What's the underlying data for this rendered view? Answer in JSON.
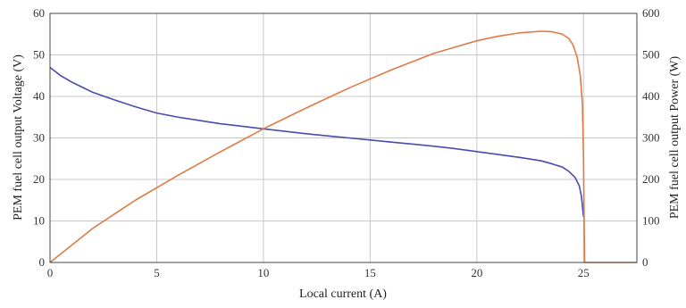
{
  "chart_data": {
    "type": "line",
    "title": "",
    "xlabel": "Local current (A)",
    "ylabel_left": "PEM fuel cell output Voltage (V)",
    "ylabel_right": "PEM fuel cell output Power (W)",
    "xlim": [
      0,
      27.5
    ],
    "ylim_left": [
      0,
      60
    ],
    "ylim_right": [
      0,
      600
    ],
    "x_ticks": [
      0,
      5,
      10,
      15,
      20,
      25
    ],
    "y_ticks_left": [
      0,
      10,
      20,
      30,
      40,
      50,
      60
    ],
    "y_ticks_right": [
      0,
      100,
      200,
      300,
      400,
      500,
      600
    ],
    "grid": true,
    "legend": "none",
    "series": [
      {
        "axis": "left",
        "color": "#4b4bb0",
        "x": [
          0,
          0.5,
          1,
          2,
          3,
          4,
          5,
          6,
          7,
          8,
          9,
          10,
          11,
          12,
          13,
          14,
          15,
          16,
          17,
          18,
          19,
          20,
          21,
          22,
          23,
          23.5,
          24,
          24.3,
          24.6,
          24.8,
          24.9,
          25.0
        ],
        "y": [
          47,
          45,
          43.5,
          41,
          39.2,
          37.5,
          36,
          35,
          34.2,
          33.4,
          32.8,
          32.2,
          31.6,
          31,
          30.5,
          30,
          29.5,
          29,
          28.5,
          28,
          27.4,
          26.7,
          26,
          25.3,
          24.5,
          23.8,
          23,
          22,
          20.5,
          18.5,
          16,
          11
        ]
      },
      {
        "axis": "right",
        "color": "#e07a45",
        "x": [
          0,
          2,
          4,
          6,
          8,
          10,
          12,
          14,
          16,
          18,
          20,
          21,
          22,
          23,
          23.5,
          24,
          24.3,
          24.5,
          24.7,
          24.85,
          24.95,
          25.0,
          25.05,
          27.5
        ],
        "y": [
          0,
          82,
          150,
          210,
          267,
          322,
          372,
          420,
          464,
          504,
          534,
          545,
          553,
          557,
          556,
          550,
          540,
          525,
          495,
          450,
          380,
          250,
          0,
          0
        ]
      }
    ]
  }
}
